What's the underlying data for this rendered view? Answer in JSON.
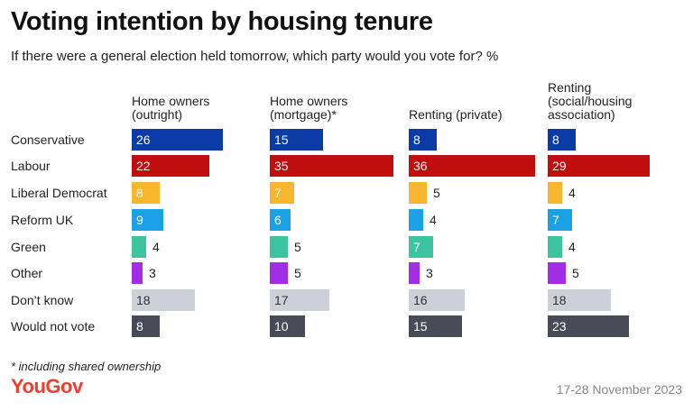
{
  "title": "Voting intention by housing tenure",
  "subtitle": "If there were a general election held tomorrow, which party would you vote for? %",
  "footnote": "* including shared ownership",
  "logo": "YouGov",
  "date": "17-28 November 2023",
  "chart_data": {
    "type": "bar",
    "orientation": "horizontal",
    "unit": "%",
    "categories": [
      "Conservative",
      "Labour",
      "Liberal Democrat",
      "Reform UK",
      "Green",
      "Other",
      "Don’t know",
      "Would not vote"
    ],
    "colors": [
      "#0a3ba6",
      "#c00d0d",
      "#f8b52e",
      "#1aa1e6",
      "#3cc3a0",
      "#a12ee6",
      "#ccd0d8",
      "#474b55"
    ],
    "panels": [
      {
        "name": "Home owners\n(outright)",
        "values": [
          26,
          22,
          8,
          9,
          4,
          3,
          18,
          8
        ]
      },
      {
        "name": "Home owners\n(mortgage)*",
        "values": [
          15,
          35,
          7,
          6,
          5,
          5,
          17,
          10
        ]
      },
      {
        "name": "Renting (private)",
        "values": [
          8,
          36,
          5,
          4,
          7,
          3,
          16,
          15
        ]
      },
      {
        "name": "Renting\n(social/housing\nassociation)",
        "values": [
          8,
          29,
          4,
          7,
          4,
          5,
          18,
          23
        ]
      }
    ]
  }
}
